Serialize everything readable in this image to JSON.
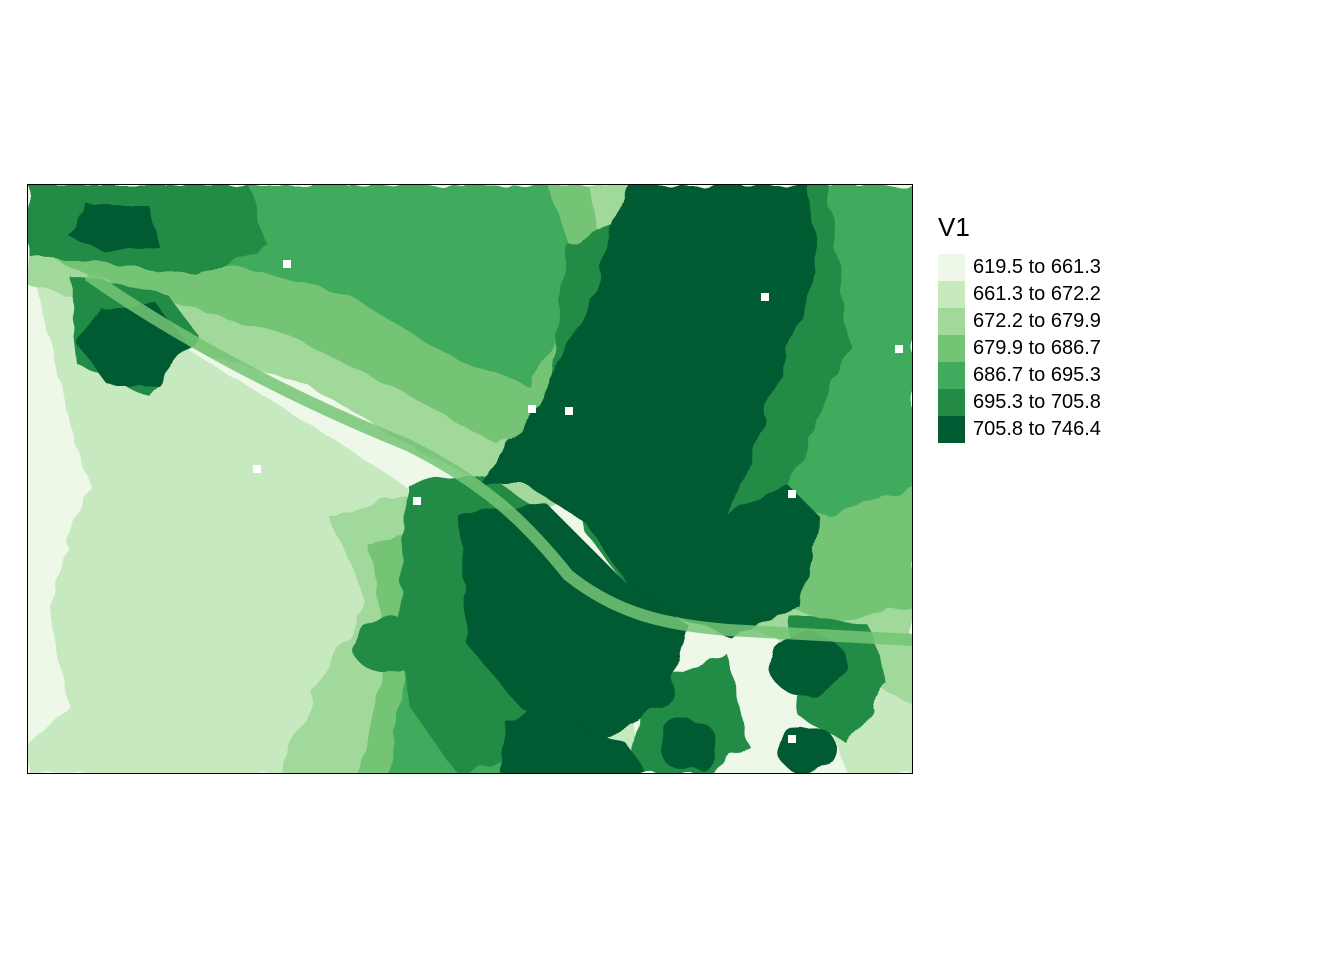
{
  "map": {
    "legend_title": "V1",
    "classes": [
      {
        "label": "619.5 to 661.3",
        "color": "#edf8e9"
      },
      {
        "label": "661.3 to 672.2",
        "color": "#c7e9c0"
      },
      {
        "label": "672.2 to 679.9",
        "color": "#a1d99b"
      },
      {
        "label": "679.9 to 686.7",
        "color": "#74c476"
      },
      {
        "label": "686.7 to 695.3",
        "color": "#41ab5d"
      },
      {
        "label": "695.3 to 705.8",
        "color": "#238b45"
      },
      {
        "label": "705.8 to 746.4",
        "color": "#005a32"
      }
    ],
    "nodata_color": "#ffffff"
  }
}
